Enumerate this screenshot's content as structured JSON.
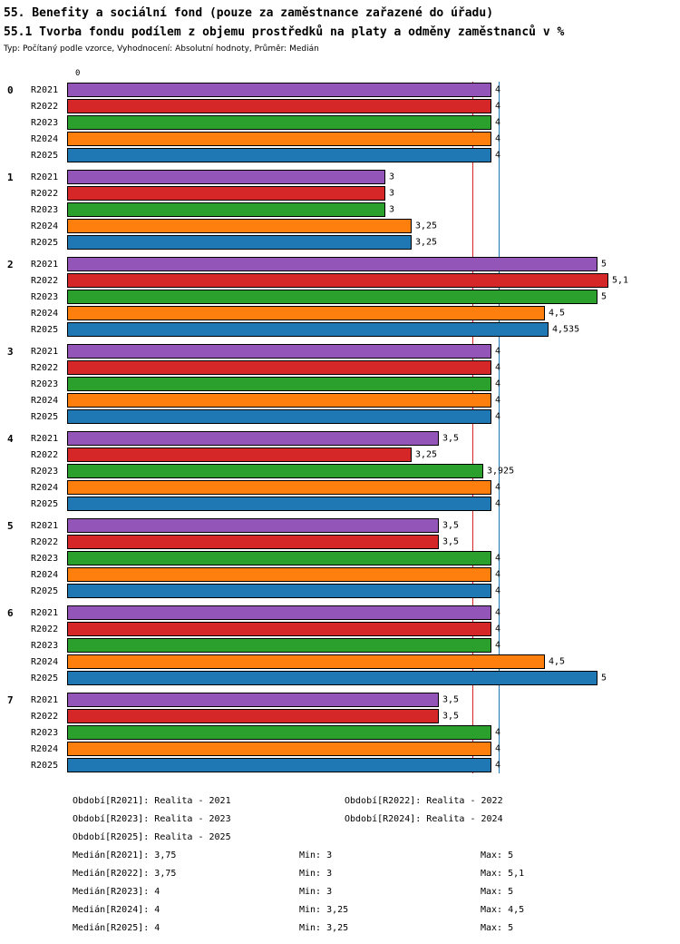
{
  "header": {
    "title": "55. Benefity a sociální fond (pouze za zaměstnance zařazené do úřadu)",
    "subtitle": "55.1 Tvorba fondu podílem z objemu prostředků na platy a odměny zaměstnanců v %",
    "meta": "Typ: Počítaný podle vzorce, Vyhodnocení: Absolutní hodnoty, Průměr: Medián"
  },
  "chart_data": {
    "type": "bar",
    "orientation": "horizontal",
    "title": "55.1 Tvorba fondu podílem z objemu prostředků na platy a odměny zaměstnanců v %",
    "axis_zero_label": "0",
    "xlim": [
      0,
      5.65
    ],
    "groups": [
      "0",
      "1",
      "2",
      "3",
      "4",
      "5",
      "6",
      "7"
    ],
    "series": [
      {
        "name": "R2021",
        "color": "#9355b8",
        "values": [
          4,
          3,
          5,
          4,
          3.5,
          3.5,
          4,
          3.5
        ]
      },
      {
        "name": "R2022",
        "color": "#d62728",
        "values": [
          4,
          3,
          5.1,
          4,
          3.25,
          3.5,
          4,
          3.5
        ]
      },
      {
        "name": "R2023",
        "color": "#2ca02c",
        "values": [
          4,
          3,
          5,
          4,
          3.925,
          4,
          4,
          4
        ]
      },
      {
        "name": "R2024",
        "color": "#ff7f0e",
        "values": [
          4,
          3.25,
          4.5,
          4,
          4,
          4,
          4.5,
          4
        ]
      },
      {
        "name": "R2025",
        "color": "#1f77b4",
        "values": [
          4,
          3.25,
          4.535,
          4,
          4,
          4,
          5,
          4
        ]
      }
    ],
    "reference_lines": [
      {
        "name": "median-3.75",
        "value": 3.75,
        "color": "#d62728"
      },
      {
        "name": "median-4",
        "value": 4,
        "color": "#1f77b4"
      }
    ]
  },
  "footer": {
    "period_rows": [
      [
        "Období[R2021]: Realita - 2021",
        "Období[R2022]: Realita - 2022"
      ],
      [
        "Období[R2023]: Realita - 2023",
        "Období[R2024]: Realita - 2024"
      ],
      [
        "Období[R2025]: Realita - 2025",
        ""
      ]
    ],
    "stats_rows": [
      [
        "Medián[R2021]: 3,75",
        "Min: 3",
        "Max: 5"
      ],
      [
        "Medián[R2022]: 3,75",
        "Min: 3",
        "Max: 5,1"
      ],
      [
        "Medián[R2023]: 4",
        "Min: 3",
        "Max: 5"
      ],
      [
        "Medián[R2024]: 4",
        "Min: 3,25",
        "Max: 4,5"
      ],
      [
        "Medián[R2025]: 4",
        "Min: 3,25",
        "Max: 5"
      ]
    ]
  }
}
